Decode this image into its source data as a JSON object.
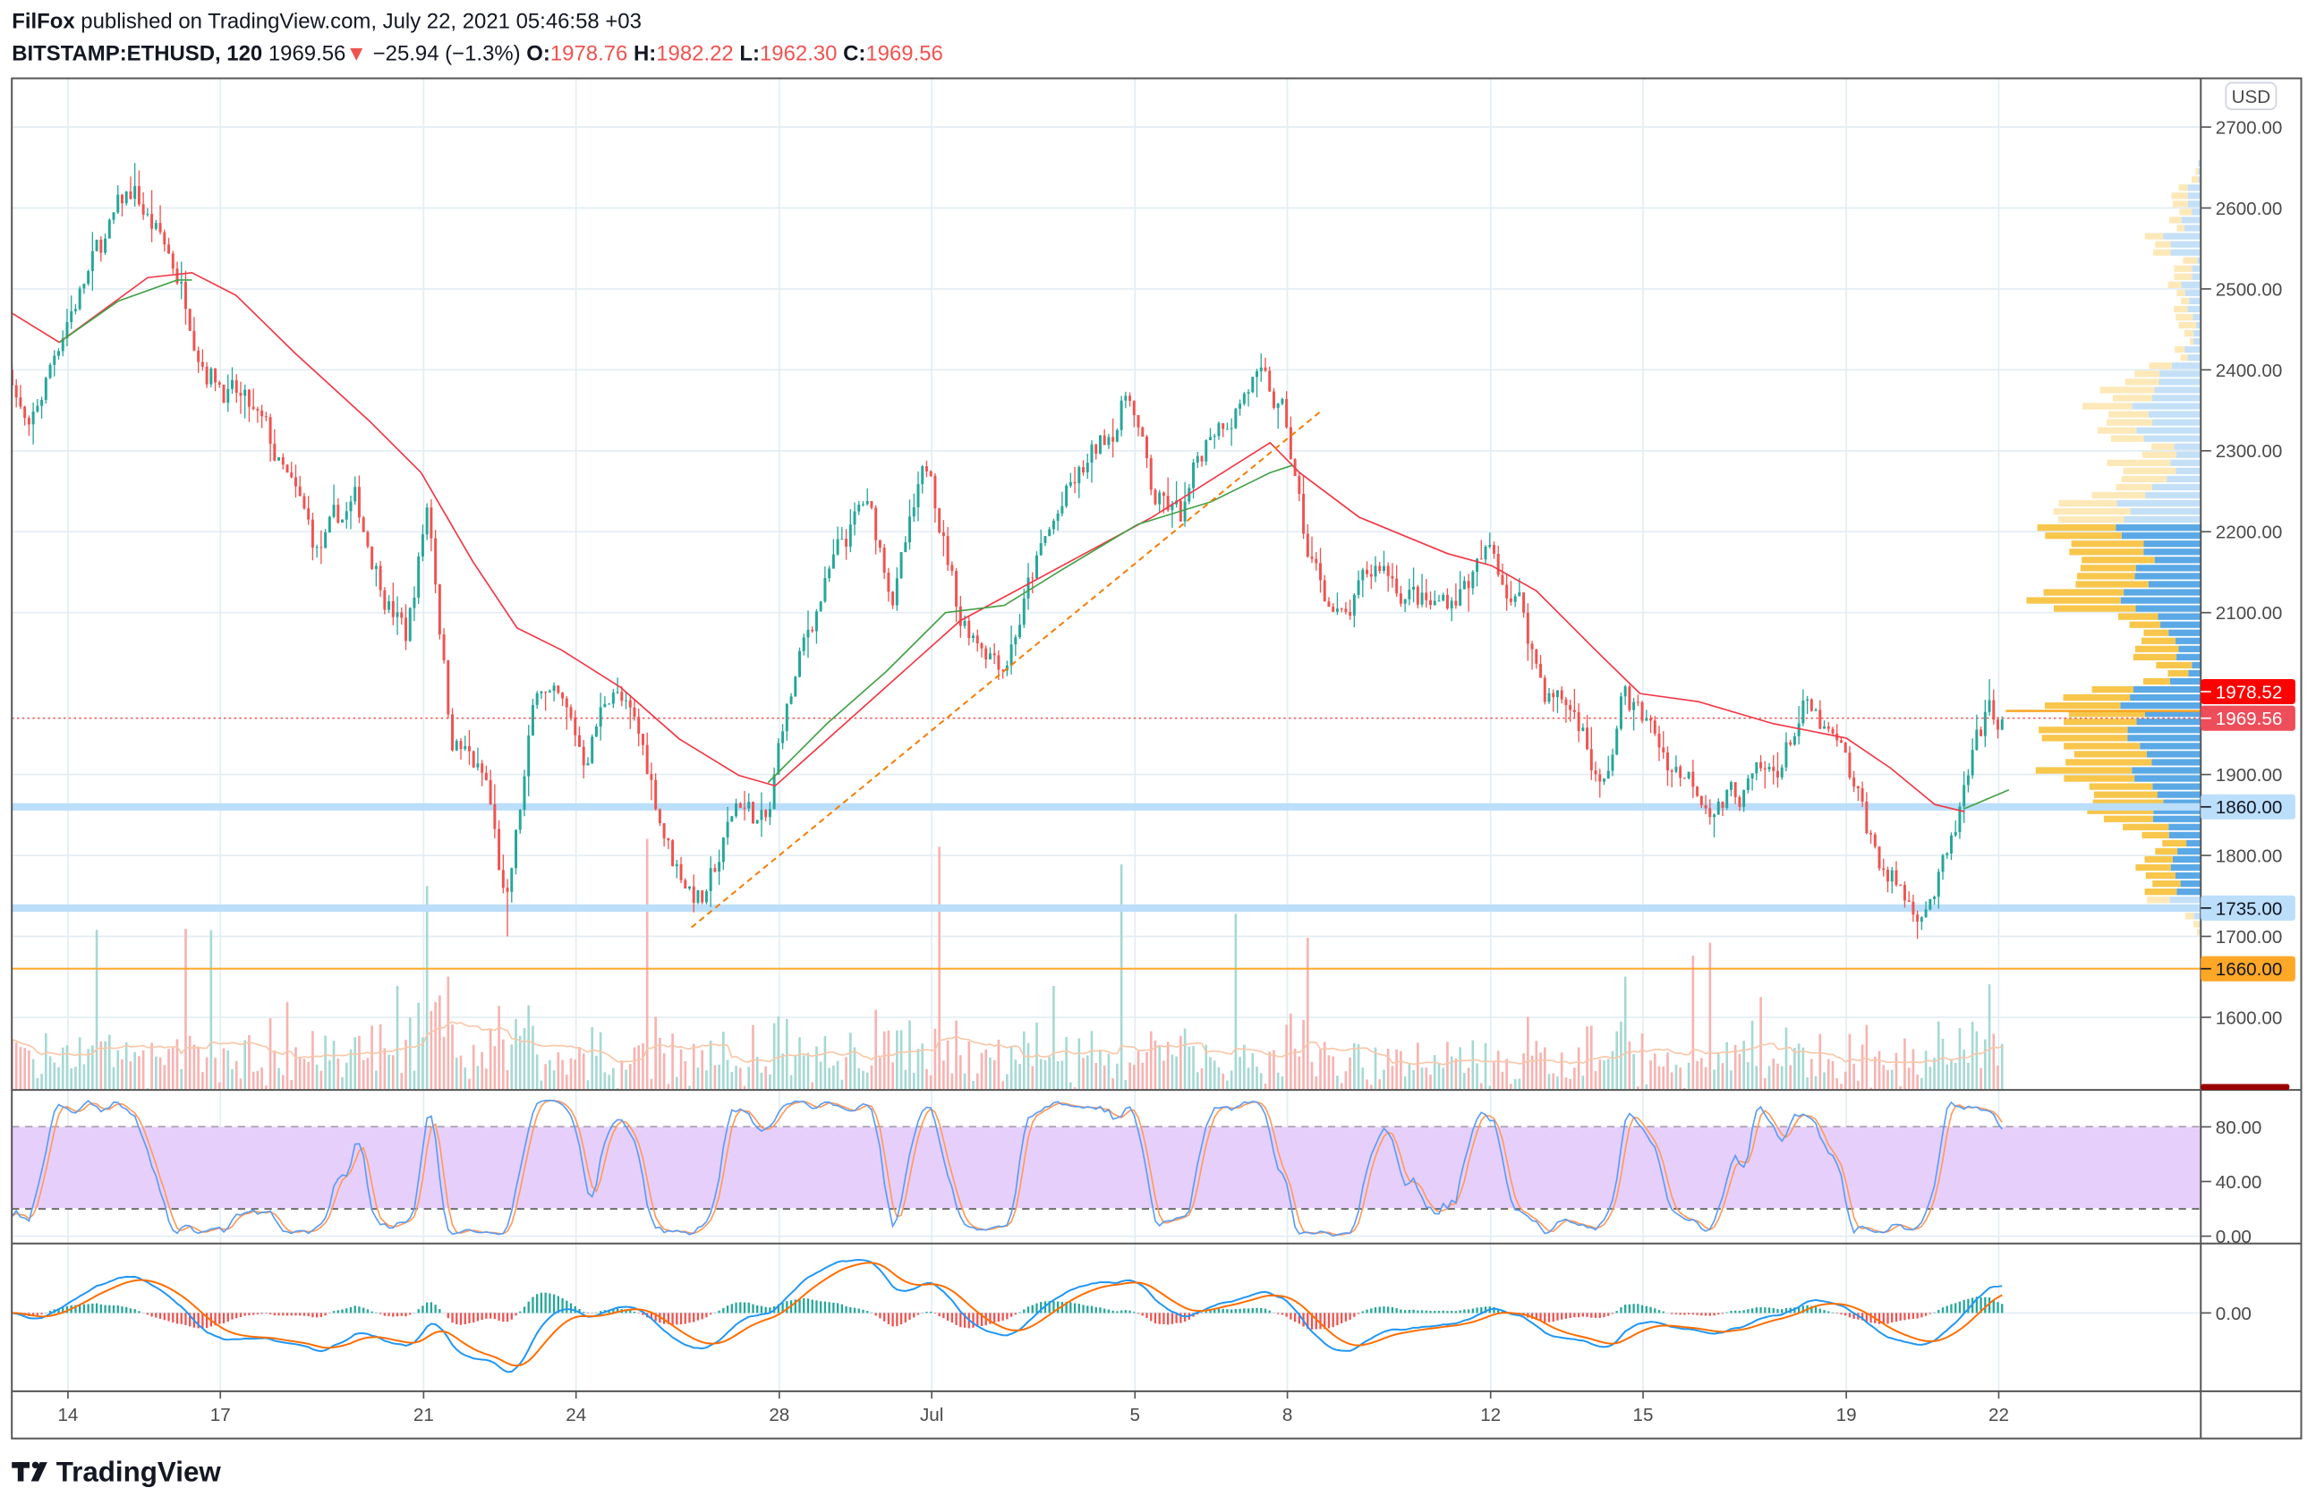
{
  "header": {
    "author": "FilFox",
    "published": " published on TradingView.com, July 22, 2021 05:46:58 +03",
    "symbol": "BITSTAMP:ETHUSD, 120",
    "last": "1969.56",
    "down_arrow": "▼",
    "change": "−25.94 (−1.3%)",
    "o_label": "O:",
    "o": "1978.76",
    "h_label": "H:",
    "h": "1982.22",
    "l_label": "L:",
    "l": "1962.30",
    "c_label": "C:",
    "c": "1969.56"
  },
  "currency": "USD",
  "logo": "TradingView",
  "colors": {
    "up": "#26a69a",
    "down": "#ef5350",
    "ma_fast": "#43a047",
    "ma_slow": "#f23645",
    "trend": "#f57c00",
    "level": "#bbdefb",
    "support_orange": "#ffa726",
    "band": "#e7cffc"
  },
  "price_axis": [
    {
      "value": 2700,
      "text": "2700.00"
    },
    {
      "value": 2600,
      "text": "2600.00"
    },
    {
      "value": 2500,
      "text": "2500.00"
    },
    {
      "value": 2400,
      "text": "2400.00"
    },
    {
      "value": 2300,
      "text": "2300.00"
    },
    {
      "value": 2200,
      "text": "2200.00"
    },
    {
      "value": 2100,
      "text": "2100.00"
    },
    {
      "value": 1900,
      "text": "1900.00"
    },
    {
      "value": 1800,
      "text": "1800.00"
    },
    {
      "value": 1700,
      "text": "1700.00"
    },
    {
      "value": 1600,
      "text": "1600.00"
    }
  ],
  "price_labels": [
    {
      "value": 1978.52,
      "text": "1978.52",
      "bg": "#ff0000",
      "fg": "#ffffff"
    },
    {
      "value": 1969.56,
      "text": "1969.56",
      "bg": "#ee4d5a",
      "fg": "#ffffff"
    },
    {
      "value": 1860,
      "text": "1860.00",
      "bg": "#bbdefb",
      "fg": "#131722"
    },
    {
      "value": 1735,
      "text": "1735.00",
      "bg": "#bbdefb",
      "fg": "#131722"
    },
    {
      "value": 1660,
      "text": "1660.00",
      "bg": "#ffa726",
      "fg": "#131722"
    }
  ],
  "stoch_axis": [
    {
      "value": 80,
      "text": "80.00"
    },
    {
      "value": 40,
      "text": "40.00"
    },
    {
      "value": 0,
      "text": "0.00"
    }
  ],
  "macd_axis": [
    {
      "value": 0,
      "text": "0.00"
    }
  ],
  "time_axis": [
    {
      "t": 0,
      "text": "14"
    },
    {
      "t": 3,
      "text": "17"
    },
    {
      "t": 7,
      "text": "21"
    },
    {
      "t": 10,
      "text": "24"
    },
    {
      "t": 14,
      "text": "28"
    },
    {
      "t": 17,
      "text": "Jul"
    },
    {
      "t": 21,
      "text": "5"
    },
    {
      "t": 24,
      "text": "8"
    },
    {
      "t": 28,
      "text": "12"
    },
    {
      "t": 31,
      "text": "15"
    },
    {
      "t": 35,
      "text": "19"
    },
    {
      "t": 38,
      "text": "22"
    }
  ],
  "chart_data": {
    "type": "candlestick",
    "title": "BITSTAMP:ETHUSD, 120",
    "x_unit": "days since Jun 14 2021",
    "ylim": [
      1520,
      2750
    ],
    "candle_interval_days": 0.0833,
    "close_path": [
      [
        -1.1,
        2400
      ],
      [
        -0.76,
        2310
      ],
      [
        -0.03,
        2470
      ],
      [
        1.28,
        2620
      ],
      [
        2.15,
        2520
      ],
      [
        2.73,
        2420
      ],
      [
        3.9,
        2310
      ],
      [
        4.91,
        2170
      ],
      [
        5.64,
        2230
      ],
      [
        6.66,
        2070
      ],
      [
        7.09,
        2240
      ],
      [
        7.53,
        1960
      ],
      [
        8.26,
        1880
      ],
      [
        8.63,
        1720
      ],
      [
        9.27,
        2020
      ],
      [
        10.15,
        1920
      ],
      [
        10.73,
        2020
      ],
      [
        11.45,
        1900
      ],
      [
        11.89,
        1800
      ],
      [
        12.56,
        1740
      ],
      [
        13.2,
        1870
      ],
      [
        13.78,
        1830
      ],
      [
        14.07,
        1960
      ],
      [
        14.8,
        2120
      ],
      [
        15.67,
        2230
      ],
      [
        16.25,
        2130
      ],
      [
        16.98,
        2280
      ],
      [
        17.56,
        2100
      ],
      [
        18.43,
        2050
      ],
      [
        19.01,
        2150
      ],
      [
        19.59,
        2230
      ],
      [
        20.32,
        2300
      ],
      [
        20.9,
        2380
      ],
      [
        21.34,
        2240
      ],
      [
        21.92,
        2210
      ],
      [
        22.5,
        2330
      ],
      [
        23.31,
        2390
      ],
      [
        23.95,
        2330
      ],
      [
        24.39,
        2170
      ],
      [
        25.12,
        2080
      ],
      [
        25.84,
        2160
      ],
      [
        26.86,
        2100
      ],
      [
        28.02,
        2170
      ],
      [
        28.6,
        2110
      ],
      [
        29.04,
        2010
      ],
      [
        29.77,
        1970
      ],
      [
        30.2,
        1870
      ],
      [
        30.64,
        2000
      ],
      [
        31.51,
        1920
      ],
      [
        32.53,
        1870
      ],
      [
        33.55,
        1890
      ],
      [
        34.13,
        1980
      ],
      [
        34.85,
        1920
      ],
      [
        35.58,
        1800
      ],
      [
        36.31,
        1735
      ],
      [
        37.03,
        1790
      ],
      [
        37.33,
        1870
      ],
      [
        37.76,
        1960
      ],
      [
        38.14,
        1969.56
      ]
    ],
    "last_candle": {
      "open": 1978.76,
      "high": 1982.22,
      "low": 1962.3,
      "close": 1969.56
    },
    "ma_fast": {
      "segments": [
        [
          [
            -0.17,
            2434
          ],
          [
            0.99,
            2485
          ],
          [
            2.15,
            2511
          ],
          [
            2.44,
            2511
          ]
        ],
        [
          [
            13.78,
            1890
          ],
          [
            14.94,
            1963
          ],
          [
            16.1,
            2027
          ],
          [
            17.27,
            2100
          ],
          [
            18.43,
            2109
          ],
          [
            19.59,
            2154
          ],
          [
            21.05,
            2209
          ],
          [
            22.5,
            2237
          ],
          [
            23.66,
            2273
          ],
          [
            24.1,
            2282
          ]
        ],
        [
          [
            37.33,
            1858
          ],
          [
            38.2,
            1881
          ]
        ]
      ]
    },
    "ma_slow": [
      [
        -1.1,
        2470
      ],
      [
        -0.17,
        2434
      ],
      [
        1.57,
        2514
      ],
      [
        2.44,
        2520
      ],
      [
        3.31,
        2492
      ],
      [
        4.48,
        2420
      ],
      [
        5.93,
        2337
      ],
      [
        6.95,
        2273
      ],
      [
        7.97,
        2163
      ],
      [
        8.84,
        2081
      ],
      [
        9.71,
        2054
      ],
      [
        10.87,
        2008
      ],
      [
        12.03,
        1944
      ],
      [
        13.2,
        1899
      ],
      [
        13.92,
        1886
      ],
      [
        17.56,
        2090
      ],
      [
        21.34,
        2218
      ],
      [
        23.66,
        2310
      ],
      [
        24.24,
        2273
      ],
      [
        25.41,
        2218
      ],
      [
        27.15,
        2173
      ],
      [
        28.02,
        2158
      ],
      [
        28.9,
        2127
      ],
      [
        30.06,
        2054
      ],
      [
        30.94,
        2000
      ],
      [
        32.09,
        1990
      ],
      [
        33.55,
        1963
      ],
      [
        35.0,
        1945
      ],
      [
        35.87,
        1908
      ],
      [
        36.74,
        1863
      ],
      [
        37.33,
        1854
      ]
    ],
    "trendline": [
      [
        12.27,
        1711
      ],
      [
        24.68,
        2350
      ]
    ],
    "horizontal_levels": [
      1860,
      1735,
      1660
    ],
    "current_price_line": 1969.56,
    "indicators": [
      "Volume",
      "Volume Profile",
      "Stochastic (band 20-80)",
      "MACD"
    ],
    "stoch_band": [
      20,
      80
    ],
    "stoch_ylim": [
      0,
      100
    ]
  }
}
